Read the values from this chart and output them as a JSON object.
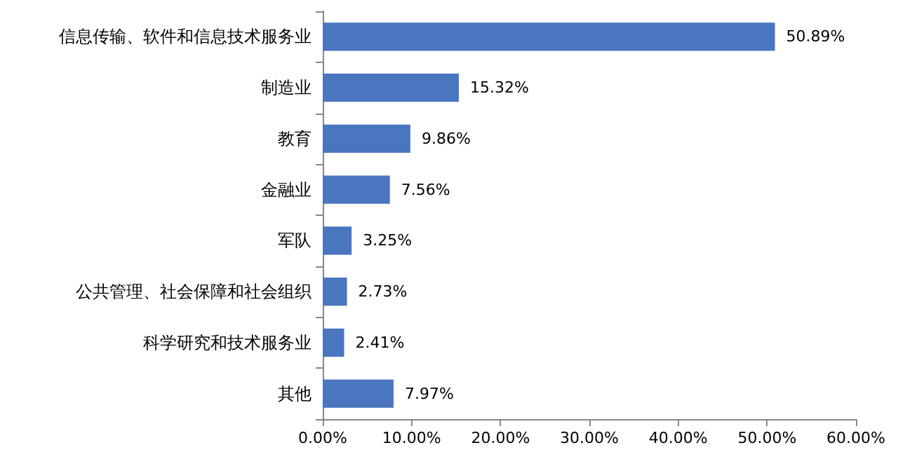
{
  "chart_data": {
    "type": "bar",
    "orientation": "horizontal",
    "categories": [
      "信息传输、软件和信息技术服务业",
      "制造业",
      "教育",
      "金融业",
      "军队",
      "公共管理、社会保障和社会组织",
      "科学研究和技术服务业",
      "其他"
    ],
    "values": [
      50.89,
      15.32,
      9.86,
      7.56,
      3.25,
      2.73,
      2.41,
      7.97
    ],
    "value_labels": [
      "50.89%",
      "15.32%",
      "9.86%",
      "7.56%",
      "3.25%",
      "2.73%",
      "2.41%",
      "7.97%"
    ],
    "color": "#4a76c0",
    "xlim": [
      0,
      60
    ],
    "xticks": [
      {
        "value": 0,
        "label": "0.00%"
      },
      {
        "value": 10,
        "label": "10.00%"
      },
      {
        "value": 20,
        "label": "20.00%"
      },
      {
        "value": 30,
        "label": "30.00%"
      },
      {
        "value": 40,
        "label": "40.00%"
      },
      {
        "value": 50,
        "label": "50.00%"
      },
      {
        "value": 60,
        "label": "60.00%"
      }
    ],
    "grid": false
  }
}
